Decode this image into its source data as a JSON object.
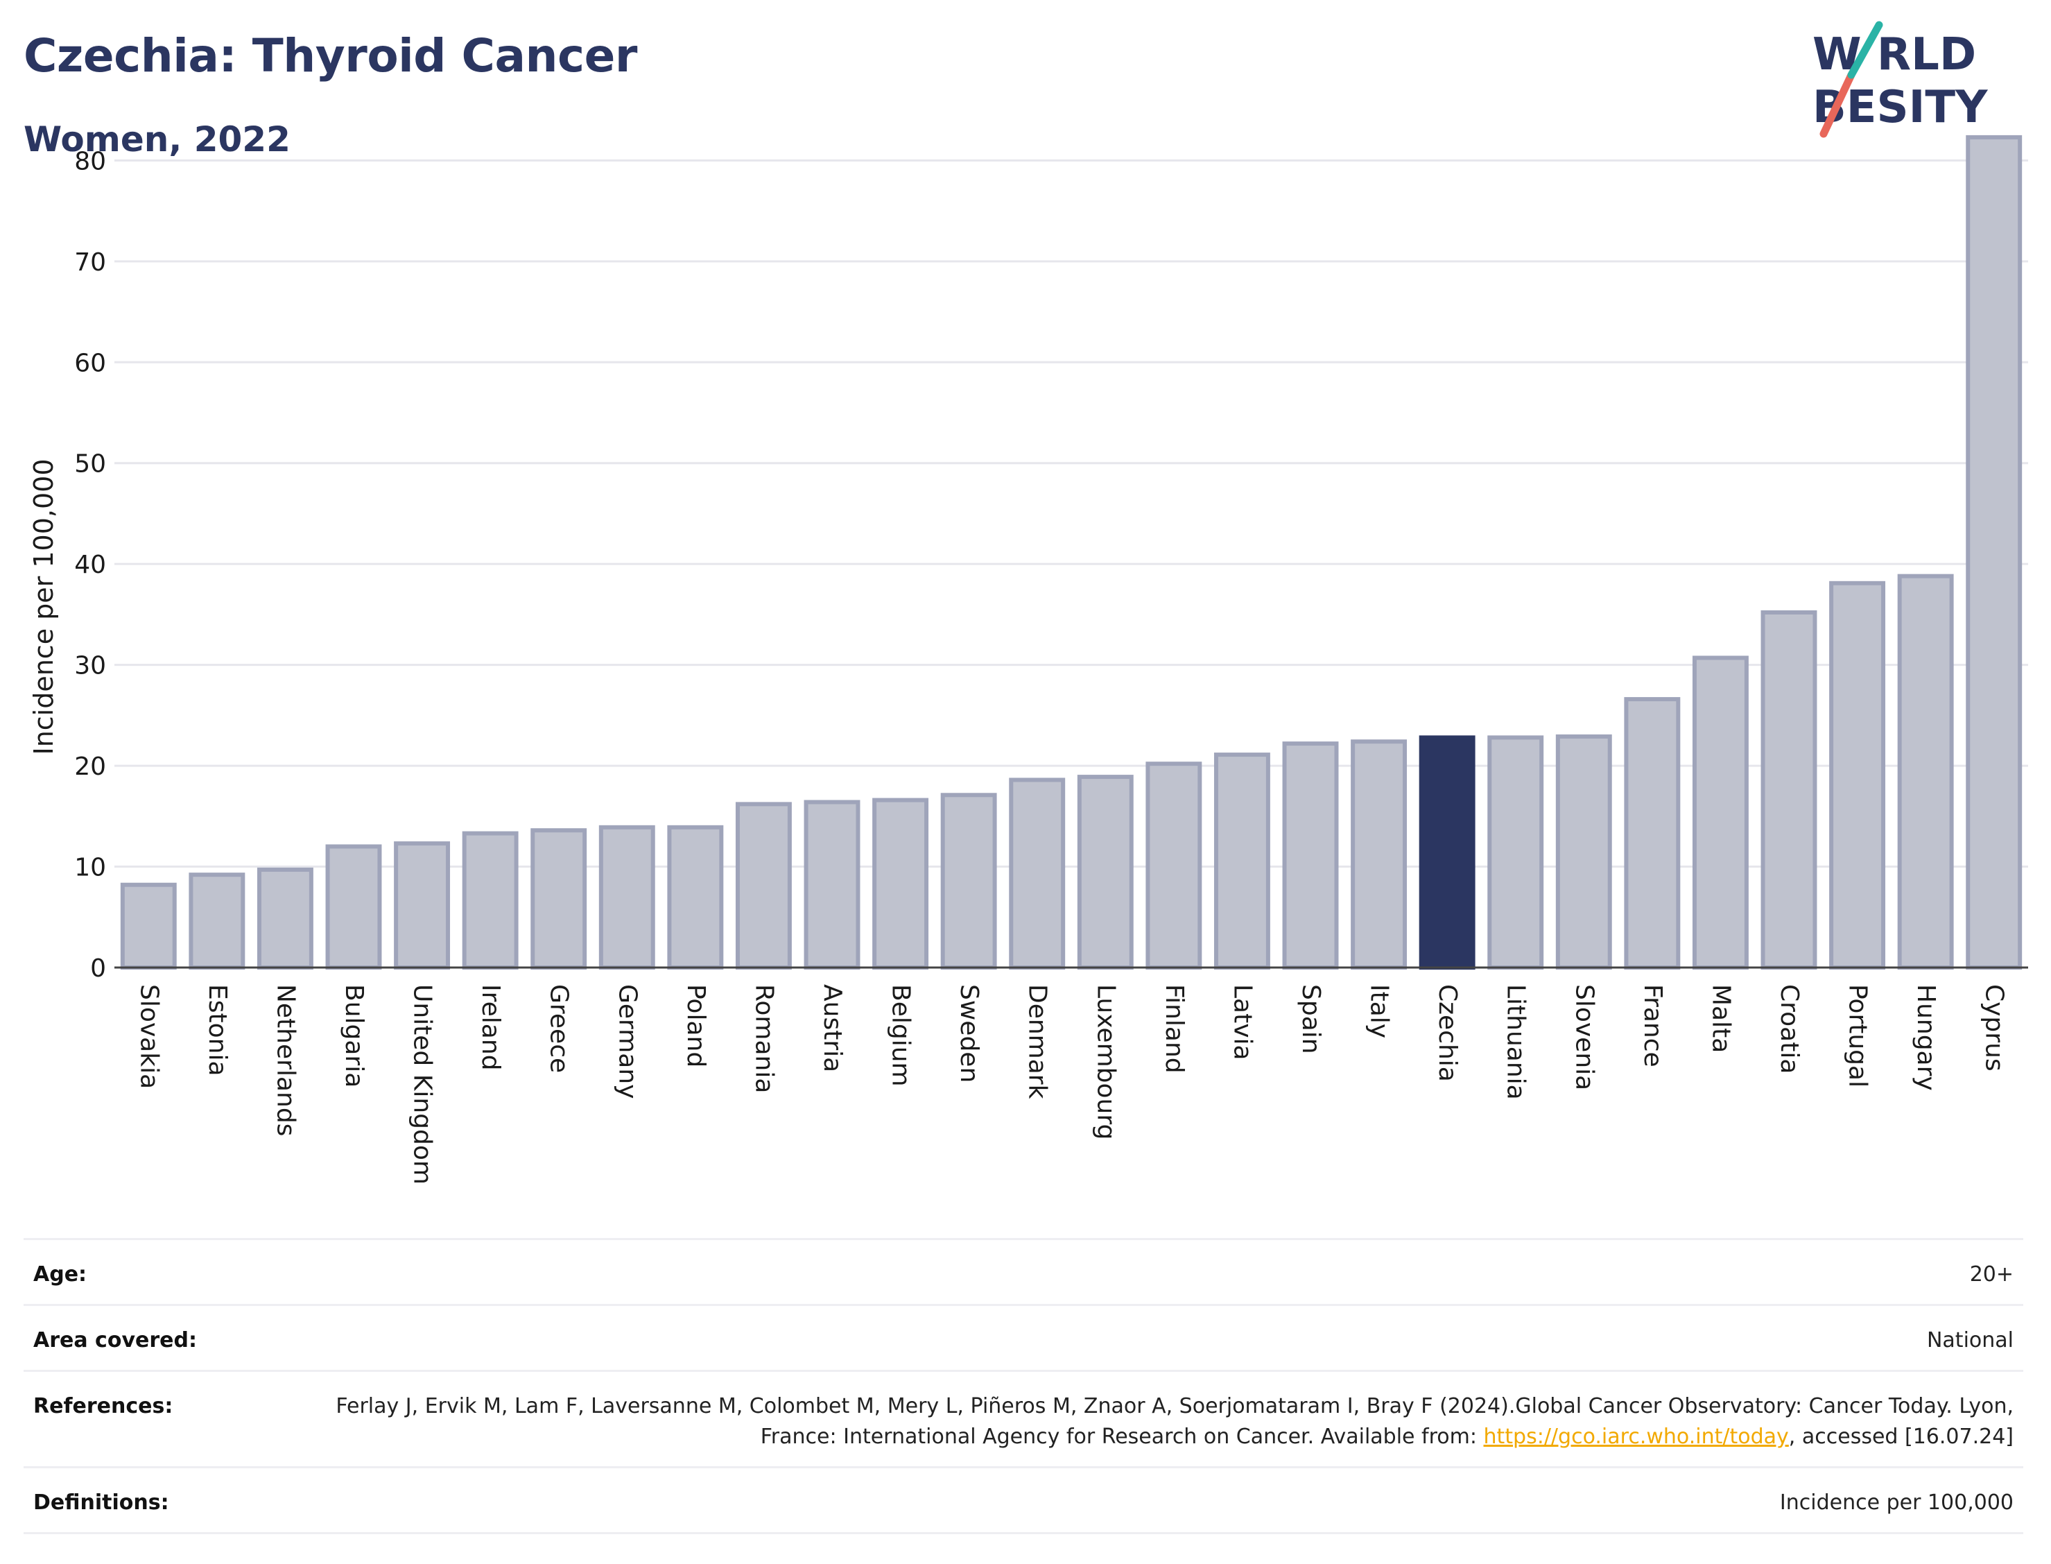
{
  "header": {
    "title": "Czechia: Thyroid Cancer",
    "subtitle": "Women, 2022"
  },
  "logo": {
    "line1": "W RLD",
    "line2": "BESITY",
    "colors": {
      "text": "#2b3661",
      "slash_top": "#2ab3a6",
      "slash_bottom": "#e8675a"
    }
  },
  "chart_data": {
    "type": "bar",
    "title": "Czechia: Thyroid Cancer",
    "subtitle": "Women, 2022",
    "xlabel": "",
    "ylabel": "Incidence per 100,000",
    "ylim": [
      0,
      82.5
    ],
    "yticks": [
      0,
      10,
      20,
      30,
      40,
      50,
      60,
      70,
      80
    ],
    "grid": true,
    "highlight": "Czechia",
    "colors": {
      "bar": "#bfc2ce",
      "bar_edge": "#9fa4ba",
      "highlight": "#2b3661",
      "grid": "#e6e6ec",
      "axis": "#444444"
    },
    "categories": [
      "Slovakia",
      "Estonia",
      "Netherlands",
      "Bulgaria",
      "United Kingdom",
      "Ireland",
      "Greece",
      "Germany",
      "Poland",
      "Romania",
      "Austria",
      "Belgium",
      "Sweden",
      "Denmark",
      "Luxembourg",
      "Finland",
      "Latvia",
      "Spain",
      "Italy",
      "Czechia",
      "Lithuania",
      "Slovenia",
      "France",
      "Malta",
      "Croatia",
      "Portugal",
      "Hungary",
      "Cyprus"
    ],
    "values": [
      8.2,
      9.2,
      9.7,
      12.0,
      12.3,
      13.3,
      13.6,
      13.9,
      13.9,
      16.2,
      16.4,
      16.6,
      17.1,
      18.6,
      18.9,
      20.2,
      21.1,
      22.2,
      22.4,
      22.8,
      22.8,
      22.9,
      26.6,
      30.7,
      35.2,
      38.1,
      38.8,
      82.3
    ]
  },
  "info": [
    {
      "label": "Age:",
      "value": "20+"
    },
    {
      "label": "Area covered:",
      "value": "National"
    },
    {
      "label": "References:",
      "value_pre": "Ferlay J, Ervik M, Lam F, Laversanne M, Colombet M, Mery L, Piñeros M, Znaor A, Soerjomataram I, Bray F (2024).Global Cancer Observatory: Cancer Today. Lyon, France: International Agency for Research on Cancer. Available from: ",
      "link": "https://gco.iarc.who.int/today",
      "value_post": ", accessed [16.07.24]"
    },
    {
      "label": "Definitions:",
      "value": "Incidence per 100,000"
    }
  ]
}
